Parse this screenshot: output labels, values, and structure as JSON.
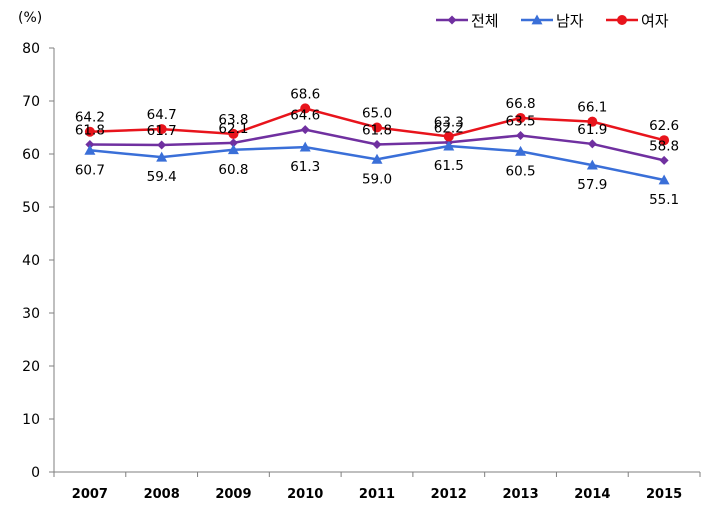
{
  "chart_data": {
    "type": "line",
    "unit_label": "(%)",
    "categories": [
      "2007",
      "2008",
      "2009",
      "2010",
      "2011",
      "2012",
      "2013",
      "2014",
      "2015"
    ],
    "ylim": [
      0,
      80
    ],
    "yticks": [
      "0",
      "10",
      "20",
      "30",
      "40",
      "50",
      "60",
      "70",
      "80"
    ],
    "grid": false,
    "legend_position": "top-right",
    "series": [
      {
        "name": "전체",
        "color": "#7030a0",
        "marker": "diamond",
        "values": [
          61.8,
          61.7,
          62.1,
          64.6,
          61.8,
          62.2,
          63.5,
          61.9,
          58.8
        ],
        "labels": [
          "61.8",
          "61.7",
          "62.1",
          "64.6",
          "61.8",
          "62.2",
          "63.5",
          "61.9",
          "58.8"
        ]
      },
      {
        "name": "남자",
        "color": "#3a6fd8",
        "marker": "triangle",
        "values": [
          60.7,
          59.4,
          60.8,
          61.3,
          59.0,
          61.5,
          60.5,
          57.9,
          55.1
        ],
        "labels": [
          "60.7",
          "59.4",
          "60.8",
          "61.3",
          "59.0",
          "61.5",
          "60.5",
          "57.9",
          "55.1"
        ]
      },
      {
        "name": "여자",
        "color": "#e8141c",
        "marker": "circle",
        "values": [
          64.2,
          64.7,
          63.8,
          68.6,
          65.0,
          63.3,
          66.8,
          66.1,
          62.6
        ],
        "labels": [
          "64.2",
          "64.7",
          "63.8",
          "68.6",
          "65.0",
          "63.3",
          "66.8",
          "66.1",
          "62.6"
        ]
      }
    ]
  }
}
